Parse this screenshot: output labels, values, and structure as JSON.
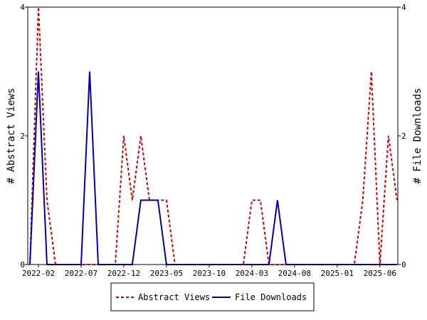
{
  "chart_data": {
    "type": "line",
    "title": "",
    "x_ticks": [
      "2022-02",
      "2022-07",
      "2022-12",
      "2023-05",
      "2023-10",
      "2024-03",
      "2024-08",
      "2025-01",
      "2025-06"
    ],
    "y_left": {
      "label": "# Abstract Views",
      "range": [
        0,
        4
      ],
      "ticks": [
        "0",
        "2",
        "4"
      ]
    },
    "y_right": {
      "label": "# File Downloads",
      "range": [
        0,
        4
      ],
      "ticks": [
        "0",
        "2",
        "4"
      ]
    },
    "series": [
      {
        "name": "Abstract Views",
        "color": "#cc0000",
        "style": "dashed",
        "axis": "left",
        "points": [
          [
            "2022-01",
            0
          ],
          [
            "2022-02",
            4
          ],
          [
            "2022-03",
            1
          ],
          [
            "2022-04",
            0
          ],
          [
            "2022-05",
            0
          ],
          [
            "2022-06",
            0
          ],
          [
            "2022-07",
            0
          ],
          [
            "2022-08",
            0
          ],
          [
            "2022-09",
            0
          ],
          [
            "2022-10",
            0
          ],
          [
            "2022-11",
            0
          ],
          [
            "2022-12",
            2
          ],
          [
            "2023-01",
            1
          ],
          [
            "2023-02",
            2
          ],
          [
            "2023-03",
            1
          ],
          [
            "2023-04",
            1
          ],
          [
            "2023-05",
            1
          ],
          [
            "2023-06",
            0
          ],
          [
            "2023-07",
            0
          ],
          [
            "2023-08",
            0
          ],
          [
            "2023-09",
            0
          ],
          [
            "2023-10",
            0
          ],
          [
            "2023-11",
            0
          ],
          [
            "2023-12",
            0
          ],
          [
            "2024-01",
            0
          ],
          [
            "2024-02",
            0
          ],
          [
            "2024-03",
            1
          ],
          [
            "2024-04",
            1
          ],
          [
            "2024-05",
            0
          ],
          [
            "2024-06",
            0
          ],
          [
            "2024-07",
            0
          ],
          [
            "2024-08",
            0
          ],
          [
            "2024-09",
            0
          ],
          [
            "2024-10",
            0
          ],
          [
            "2024-11",
            0
          ],
          [
            "2024-12",
            0
          ],
          [
            "2025-01",
            0
          ],
          [
            "2025-02",
            0
          ],
          [
            "2025-03",
            0
          ],
          [
            "2025-04",
            1
          ],
          [
            "2025-05",
            3
          ],
          [
            "2025-06",
            0
          ],
          [
            "2025-07",
            2
          ],
          [
            "2025-08",
            1
          ]
        ]
      },
      {
        "name": "File Downloads",
        "color": "#0000aa",
        "style": "solid",
        "axis": "right",
        "points": [
          [
            "2022-01",
            0
          ],
          [
            "2022-02",
            3
          ],
          [
            "2022-03",
            0
          ],
          [
            "2022-04",
            0
          ],
          [
            "2022-05",
            0
          ],
          [
            "2022-06",
            0
          ],
          [
            "2022-07",
            0
          ],
          [
            "2022-08",
            3
          ],
          [
            "2022-09",
            0
          ],
          [
            "2022-10",
            0
          ],
          [
            "2022-11",
            0
          ],
          [
            "2022-12",
            0
          ],
          [
            "2023-01",
            0
          ],
          [
            "2023-02",
            1
          ],
          [
            "2023-03",
            1
          ],
          [
            "2023-04",
            1
          ],
          [
            "2023-05",
            0
          ],
          [
            "2023-06",
            0
          ],
          [
            "2023-07",
            0
          ],
          [
            "2023-08",
            0
          ],
          [
            "2023-09",
            0
          ],
          [
            "2023-10",
            0
          ],
          [
            "2023-11",
            0
          ],
          [
            "2023-12",
            0
          ],
          [
            "2024-01",
            0
          ],
          [
            "2024-02",
            0
          ],
          [
            "2024-03",
            0
          ],
          [
            "2024-04",
            0
          ],
          [
            "2024-05",
            0
          ],
          [
            "2024-06",
            1
          ],
          [
            "2024-07",
            0
          ],
          [
            "2024-08",
            0
          ],
          [
            "2024-09",
            0
          ],
          [
            "2024-10",
            0
          ],
          [
            "2024-11",
            0
          ],
          [
            "2024-12",
            0
          ],
          [
            "2025-01",
            0
          ],
          [
            "2025-02",
            0
          ],
          [
            "2025-03",
            0
          ],
          [
            "2025-04",
            0
          ],
          [
            "2025-05",
            0
          ],
          [
            "2025-06",
            0
          ],
          [
            "2025-07",
            0
          ],
          [
            "2025-08",
            0
          ]
        ]
      }
    ],
    "grid": false,
    "legend_position": "bottom-center"
  }
}
